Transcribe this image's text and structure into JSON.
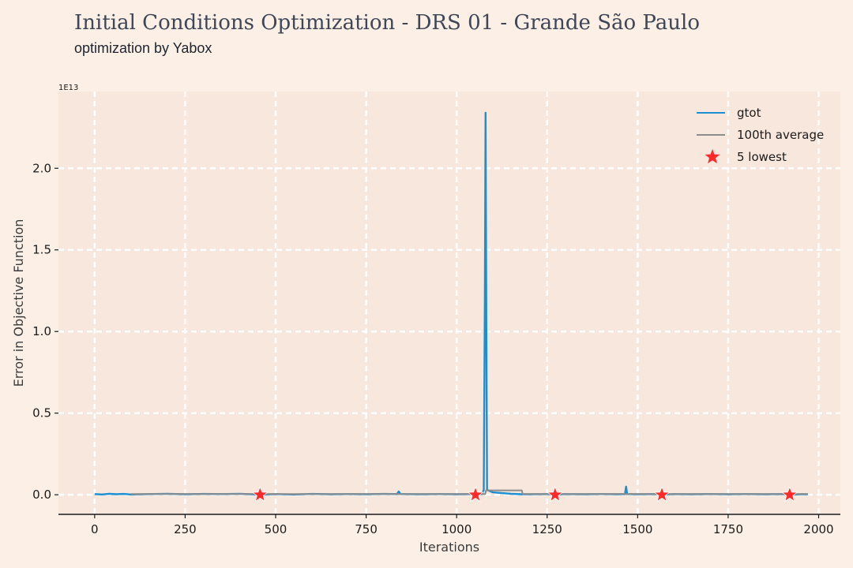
{
  "header": {
    "title": "Initial Conditions Optimization - DRS 01 - Grande São Paulo",
    "subtitle": "optimization by Yabox"
  },
  "chart_data": {
    "type": "line",
    "xlabel": "Iterations",
    "ylabel": "Error in Objective Function",
    "y_offset_label": "1E13",
    "xlim": [
      -100,
      2060
    ],
    "ylim": [
      -0.12,
      2.47
    ],
    "y_scale_multiplier": 10000000000000.0,
    "xticks": [
      0,
      250,
      500,
      750,
      1000,
      1250,
      1500,
      1750,
      2000
    ],
    "xtick_labels": [
      "0",
      "250",
      "500",
      "750",
      "1000",
      "1250",
      "1500",
      "1750",
      "2000"
    ],
    "yticks": [
      0.0,
      0.5,
      1.0,
      1.5,
      2.0
    ],
    "ytick_labels": [
      "0.0",
      "0.5",
      "1.0",
      "1.5",
      "2.0"
    ],
    "grid": true,
    "legend_position": "top-right",
    "colors": {
      "background": "#fcf0e6",
      "plot_area": "#f8e7dc",
      "grid": "#ffffff",
      "gtot": "#1b8fd2",
      "average": "#8c8c8c",
      "lowest": "#ff2b2b"
    },
    "series": [
      {
        "name": "gtot",
        "kind": "line",
        "points": [
          [
            0,
            0.004
          ],
          [
            20,
            0.002
          ],
          [
            40,
            0.006
          ],
          [
            60,
            0.003
          ],
          [
            80,
            0.005
          ],
          [
            100,
            0.002
          ],
          [
            150,
            0.004
          ],
          [
            200,
            0.006
          ],
          [
            250,
            0.003
          ],
          [
            300,
            0.005
          ],
          [
            350,
            0.004
          ],
          [
            400,
            0.006
          ],
          [
            457,
            0.001
          ],
          [
            500,
            0.004
          ],
          [
            550,
            0.002
          ],
          [
            600,
            0.005
          ],
          [
            650,
            0.003
          ],
          [
            700,
            0.004
          ],
          [
            750,
            0.003
          ],
          [
            800,
            0.005
          ],
          [
            835,
            0.004
          ],
          [
            840,
            0.02
          ],
          [
            845,
            0.004
          ],
          [
            900,
            0.003
          ],
          [
            950,
            0.004
          ],
          [
            1000,
            0.003
          ],
          [
            1040,
            0.004
          ],
          [
            1052,
            0.001
          ],
          [
            1070,
            0.004
          ],
          [
            1075,
            0.03
          ],
          [
            1078,
            1.2
          ],
          [
            1080,
            2.34
          ],
          [
            1082,
            1.0
          ],
          [
            1084,
            0.03
          ],
          [
            1100,
            0.015
          ],
          [
            1150,
            0.006
          ],
          [
            1180,
            0.003
          ],
          [
            1200,
            0.003
          ],
          [
            1250,
            0.004
          ],
          [
            1272,
            0.001
          ],
          [
            1300,
            0.004
          ],
          [
            1350,
            0.003
          ],
          [
            1400,
            0.004
          ],
          [
            1450,
            0.003
          ],
          [
            1465,
            0.004
          ],
          [
            1468,
            0.05
          ],
          [
            1471,
            0.004
          ],
          [
            1500,
            0.003
          ],
          [
            1550,
            0.004
          ],
          [
            1567,
            0.001
          ],
          [
            1600,
            0.004
          ],
          [
            1650,
            0.003
          ],
          [
            1700,
            0.004
          ],
          [
            1750,
            0.003
          ],
          [
            1800,
            0.004
          ],
          [
            1850,
            0.003
          ],
          [
            1900,
            0.004
          ],
          [
            1920,
            0.001
          ],
          [
            1950,
            0.003
          ],
          [
            1970,
            0.003
          ]
        ]
      },
      {
        "name": "100th average",
        "kind": "line",
        "points": [
          [
            100,
            0.004
          ],
          [
            200,
            0.005
          ],
          [
            300,
            0.004
          ],
          [
            400,
            0.005
          ],
          [
            500,
            0.004
          ],
          [
            600,
            0.004
          ],
          [
            700,
            0.004
          ],
          [
            800,
            0.005
          ],
          [
            900,
            0.004
          ],
          [
            1000,
            0.004
          ],
          [
            1079,
            0.004
          ],
          [
            1081,
            0.027
          ],
          [
            1180,
            0.027
          ],
          [
            1182,
            0.005
          ],
          [
            1250,
            0.004
          ],
          [
            1350,
            0.004
          ],
          [
            1450,
            0.005
          ],
          [
            1550,
            0.004
          ],
          [
            1650,
            0.004
          ],
          [
            1750,
            0.004
          ],
          [
            1850,
            0.004
          ],
          [
            1970,
            0.004
          ]
        ]
      },
      {
        "name": "5 lowest",
        "kind": "scatter",
        "points": [
          [
            457,
            0.0
          ],
          [
            1052,
            0.0
          ],
          [
            1272,
            0.0
          ],
          [
            1567,
            0.0
          ],
          [
            1920,
            0.0
          ]
        ]
      }
    ]
  }
}
